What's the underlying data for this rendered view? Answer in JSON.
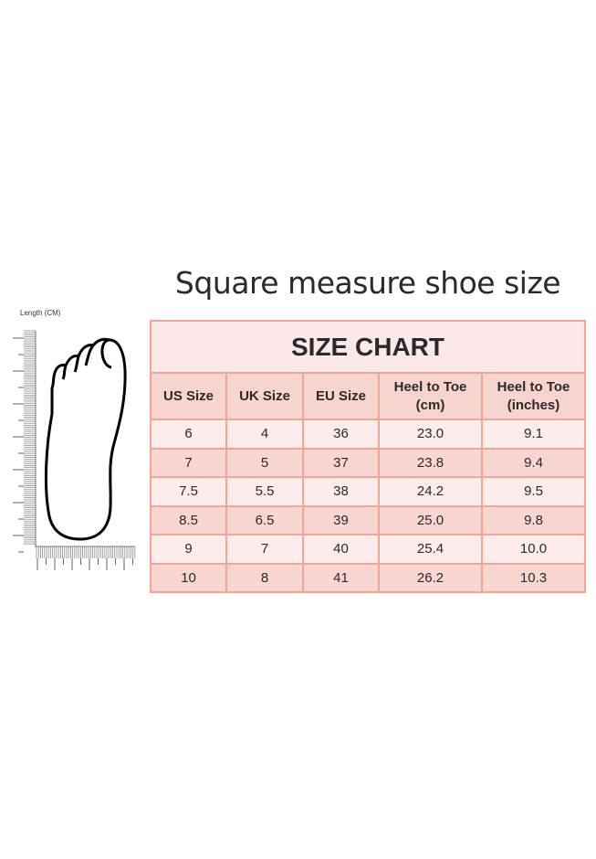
{
  "heading": "Square measure shoe size",
  "ruler_label": "Length (CM)",
  "table": {
    "title": "SIZE CHART",
    "columns": [
      "US Size",
      "UK Size",
      "EU Size",
      "Heel to Toe (cm)",
      "Heel to Toe (inches)"
    ],
    "rows": [
      [
        "6",
        "4",
        "36",
        "23.0",
        "9.1"
      ],
      [
        "7",
        "5",
        "37",
        "23.8",
        "9.4"
      ],
      [
        "7.5",
        "5.5",
        "38",
        "24.2",
        "9.5"
      ],
      [
        "8.5",
        "6.5",
        "39",
        "25.0",
        "9.8"
      ],
      [
        "9",
        "7",
        "40",
        "25.4",
        "10.0"
      ],
      [
        "10",
        "8",
        "41",
        "26.2",
        "10.3"
      ]
    ]
  },
  "colors": {
    "border": "#efa694",
    "header_bg": "#f8d4cf",
    "title_bg": "#fce8e8",
    "row_light": "#fdecec",
    "row_dark": "#f9d6d2"
  }
}
